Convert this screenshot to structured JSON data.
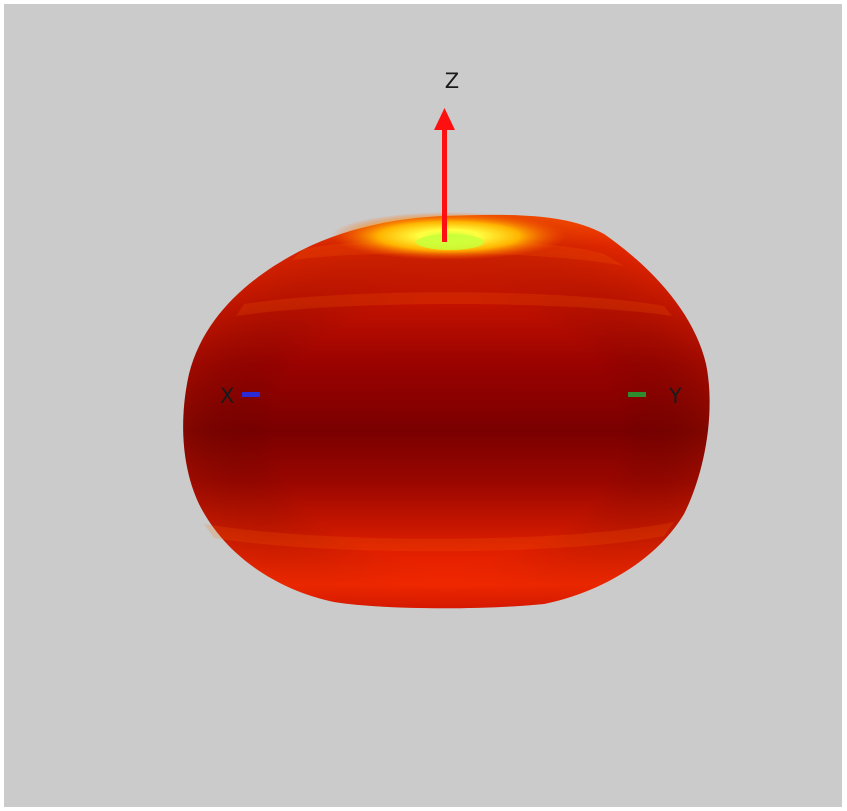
{
  "axes": {
    "z": {
      "label": "Z",
      "color": "#ff1010"
    },
    "x": {
      "label": "X",
      "color": "#2b2bd6"
    },
    "y": {
      "label": "Y",
      "color": "#2e8b2e"
    }
  },
  "pattern": {
    "colors": {
      "equator": "#7a0000",
      "mid": "#c00a00",
      "edge": "#e82a00",
      "lower_bright": "#ff2a00",
      "cap": "#ffb300",
      "tip": "#ffff40",
      "core": "#c8ff3a"
    }
  }
}
